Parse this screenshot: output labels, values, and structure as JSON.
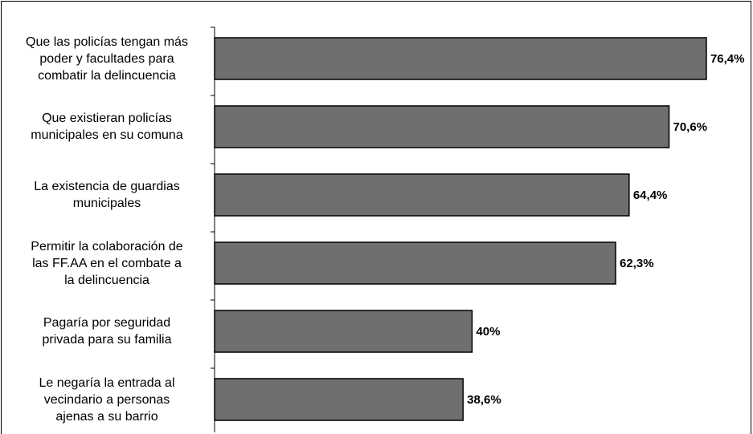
{
  "chart_data": {
    "type": "bar",
    "orientation": "horizontal",
    "categories": [
      "Que las policías tengan más poder y facultades para combatir la delincuencia",
      "Que existieran policías municipales en su comuna",
      "La existencia de guardias municipales",
      "Permitir la colaboración de las FF.AA en el combate a la delincuencia",
      "Pagaría por seguridad privada para su familia",
      "Le negaría la entrada al vecindario a personas ajenas a su barrio"
    ],
    "category_lines": [
      [
        "Que las policías tengan más",
        "poder y facultades para",
        "combatir la delincuencia"
      ],
      [
        "Que existieran policías",
        "municipales en su comuna"
      ],
      [
        "La existencia de guardias",
        "municipales"
      ],
      [
        "Permitir la colaboración de",
        "las FF.AA en el combate a",
        "la delincuencia"
      ],
      [
        "Pagaría por seguridad",
        "privada para su familia"
      ],
      [
        "Le negaría la entrada al",
        "vecindario a personas",
        "ajenas a su barrio"
      ]
    ],
    "values": [
      76.4,
      70.6,
      64.4,
      62.3,
      40,
      38.6
    ],
    "value_labels": [
      "76,4%",
      "70,6%",
      "64,4%",
      "62,3%",
      "40%",
      "38,6%"
    ],
    "title": "",
    "xlabel": "",
    "ylabel": "",
    "xlim": [
      0,
      100
    ],
    "grid": false,
    "legend": "none",
    "colors": {
      "bar_fill": "#6f6f6f",
      "bar_stroke": "#000000",
      "background": "#ffffff"
    }
  }
}
